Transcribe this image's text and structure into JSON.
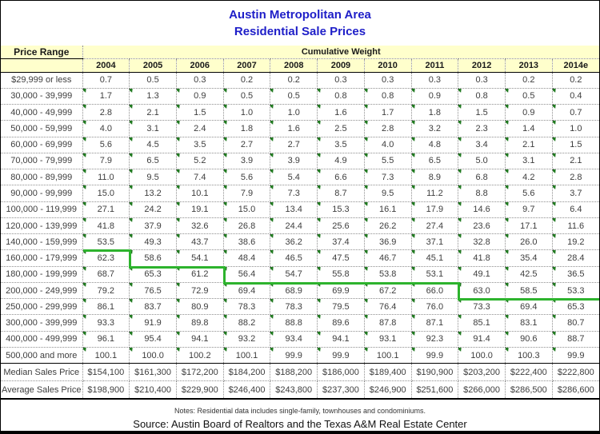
{
  "title": {
    "line1": "Austin Metropolitan Area",
    "line2": "Residential Sale Prices"
  },
  "table": {
    "price_range_header": "Price Range",
    "group_header": "Cumulative Weight",
    "years": [
      "2004",
      "2005",
      "2006",
      "2007",
      "2008",
      "2009",
      "2010",
      "2011",
      "2012",
      "2013",
      "2014e"
    ],
    "rows": [
      {
        "label": "$29,999 or less",
        "values": [
          "0.7",
          "0.5",
          "0.3",
          "0.2",
          "0.2",
          "0.3",
          "0.3",
          "0.3",
          "0.3",
          "0.2",
          "0.2"
        ]
      },
      {
        "label": "30,000 - 39,999",
        "values": [
          "1.7",
          "1.3",
          "0.9",
          "0.5",
          "0.5",
          "0.8",
          "0.8",
          "0.9",
          "0.8",
          "0.5",
          "0.4"
        ]
      },
      {
        "label": "40,000 - 49,999",
        "values": [
          "2.8",
          "2.1",
          "1.5",
          "1.0",
          "1.0",
          "1.6",
          "1.7",
          "1.8",
          "1.5",
          "0.9",
          "0.7"
        ]
      },
      {
        "label": "50,000 - 59,999",
        "values": [
          "4.0",
          "3.1",
          "2.4",
          "1.8",
          "1.6",
          "2.5",
          "2.8",
          "3.2",
          "2.3",
          "1.4",
          "1.0"
        ]
      },
      {
        "label": "60,000 - 69,999",
        "values": [
          "5.6",
          "4.5",
          "3.5",
          "2.7",
          "2.7",
          "3.5",
          "4.0",
          "4.8",
          "3.4",
          "2.1",
          "1.5"
        ]
      },
      {
        "label": "70,000 - 79,999",
        "values": [
          "7.9",
          "6.5",
          "5.2",
          "3.9",
          "3.9",
          "4.9",
          "5.5",
          "6.5",
          "5.0",
          "3.1",
          "2.1"
        ]
      },
      {
        "label": "80,000 - 89,999",
        "values": [
          "11.0",
          "9.5",
          "7.4",
          "5.6",
          "5.4",
          "6.6",
          "7.3",
          "8.9",
          "6.8",
          "4.2",
          "2.8"
        ]
      },
      {
        "label": "90,000 - 99,999",
        "values": [
          "15.0",
          "13.2",
          "10.1",
          "7.9",
          "7.3",
          "8.7",
          "9.5",
          "11.2",
          "8.8",
          "5.6",
          "3.7"
        ]
      },
      {
        "label": "100,000 - 119,999",
        "values": [
          "27.1",
          "24.2",
          "19.1",
          "15.0",
          "13.4",
          "15.3",
          "16.1",
          "17.9",
          "14.6",
          "9.7",
          "6.4"
        ]
      },
      {
        "label": "120,000 - 139,999",
        "values": [
          "41.8",
          "37.9",
          "32.6",
          "26.8",
          "24.4",
          "25.6",
          "26.2",
          "27.4",
          "23.6",
          "17.1",
          "11.6"
        ]
      },
      {
        "label": "140,000 - 159,999",
        "values": [
          "53.5",
          "49.3",
          "43.7",
          "38.6",
          "36.2",
          "37.4",
          "36.9",
          "37.1",
          "32.8",
          "26.0",
          "19.2"
        ]
      },
      {
        "label": "160,000 - 179,999",
        "values": [
          "62.3",
          "58.6",
          "54.1",
          "48.4",
          "46.5",
          "47.5",
          "46.7",
          "45.1",
          "41.8",
          "35.4",
          "28.4"
        ]
      },
      {
        "label": "180,000 - 199,999",
        "values": [
          "68.7",
          "65.3",
          "61.2",
          "56.4",
          "54.7",
          "55.8",
          "53.8",
          "53.1",
          "49.1",
          "42.5",
          "36.5"
        ]
      },
      {
        "label": "200,000 - 249,999",
        "values": [
          "79.2",
          "76.5",
          "72.9",
          "69.4",
          "68.9",
          "69.9",
          "67.2",
          "66.0",
          "63.0",
          "58.5",
          "53.3"
        ]
      },
      {
        "label": "250,000 - 299,999",
        "values": [
          "86.1",
          "83.7",
          "80.9",
          "78.3",
          "78.3",
          "79.5",
          "76.4",
          "76.0",
          "73.3",
          "69.4",
          "65.3"
        ]
      },
      {
        "label": "300,000 - 399,999",
        "values": [
          "93.3",
          "91.9",
          "89.8",
          "88.2",
          "88.8",
          "89.6",
          "87.8",
          "87.1",
          "85.1",
          "83.1",
          "80.7"
        ]
      },
      {
        "label": "400,000 - 499,999",
        "values": [
          "96.1",
          "95.4",
          "94.1",
          "93.2",
          "93.4",
          "94.1",
          "93.1",
          "92.3",
          "91.4",
          "90.6",
          "88.7"
        ]
      },
      {
        "label": "500,000 and more",
        "values": [
          "100.1",
          "100.0",
          "100.2",
          "100.1",
          "99.9",
          "99.9",
          "100.1",
          "99.9",
          "100.0",
          "100.3",
          "99.9"
        ]
      }
    ],
    "median_row": {
      "label": "Median Sales Price",
      "values": [
        "$154,100",
        "$161,300",
        "$172,200",
        "$184,200",
        "$188,200",
        "$186,000",
        "$189,400",
        "$190,900",
        "$203,200",
        "$222,400",
        "$222,800"
      ]
    },
    "average_row": {
      "label": "Average Sales Price",
      "values": [
        "$198,900",
        "$210,400",
        "$229,900",
        "$246,400",
        "$243,800",
        "$237,300",
        "$246,900",
        "$251,600",
        "$266,000",
        "$286,500",
        "$286,600"
      ]
    }
  },
  "median_line": {
    "description": "green step line drawn along the bottom edge of the row containing the median sale price for each year",
    "bottom_of_row_by_year": [
      10,
      11,
      11,
      12,
      12,
      12,
      12,
      12,
      13,
      13,
      13
    ]
  },
  "footer": {
    "notes": "Notes: Residential data includes single-family, townhouses and condominiums.",
    "source": "Source: Austin Board of Realtors and the Texas A&M Real Estate Center"
  },
  "colors": {
    "title": "#1e1ec8",
    "header_bg": "#ffffcc",
    "grid_dotted": "#8f8f8f",
    "text": "#3d3d3d",
    "marker_green": "#217a21",
    "line_green": "#2db32d"
  }
}
